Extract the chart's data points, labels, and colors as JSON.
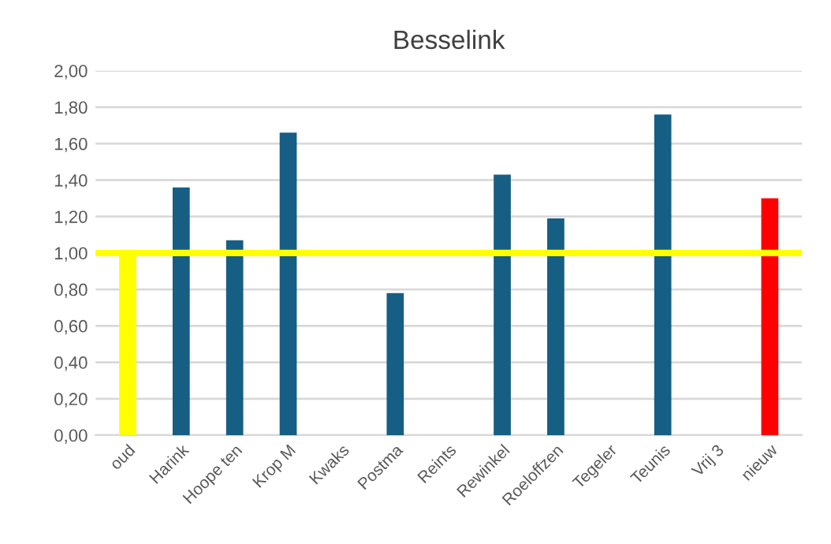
{
  "chart_data": {
    "type": "bar",
    "title": "Besselink",
    "categories": [
      "oud",
      "Harink",
      "Hoope ten",
      "Krop M",
      "Kwaks",
      "Postma",
      "Reints",
      "Rewinkel",
      "Roeloffzen",
      "Tegeler",
      "Teunis",
      "Vrij 3",
      "nieuw"
    ],
    "values": [
      1.0,
      1.36,
      1.07,
      1.66,
      null,
      0.78,
      null,
      1.43,
      1.19,
      null,
      1.76,
      null,
      1.3
    ],
    "colors": [
      "#ffff00",
      "#165e83",
      "#165e83",
      "#165e83",
      "#165e83",
      "#165e83",
      "#165e83",
      "#165e83",
      "#165e83",
      "#165e83",
      "#165e83",
      "#165e83",
      "#ff0000"
    ],
    "ylim": [
      0,
      2
    ],
    "yticks": [
      {
        "value": 0,
        "label": "0,00"
      },
      {
        "value": 0.2,
        "label": "0,20"
      },
      {
        "value": 0.4,
        "label": "0,40"
      },
      {
        "value": 0.6,
        "label": "0,60"
      },
      {
        "value": 0.8,
        "label": "0,80"
      },
      {
        "value": 1,
        "label": "1,00"
      },
      {
        "value": 1.2,
        "label": "1,20"
      },
      {
        "value": 1.4,
        "label": "1,40"
      },
      {
        "value": 1.6,
        "label": "1,60"
      },
      {
        "value": 1.8,
        "label": "1,80"
      },
      {
        "value": 2,
        "label": "2,00"
      }
    ],
    "ref_lines": [
      {
        "axis": "y",
        "value": 1,
        "color": "#ffff00"
      }
    ],
    "grid": "y",
    "legend": false
  }
}
